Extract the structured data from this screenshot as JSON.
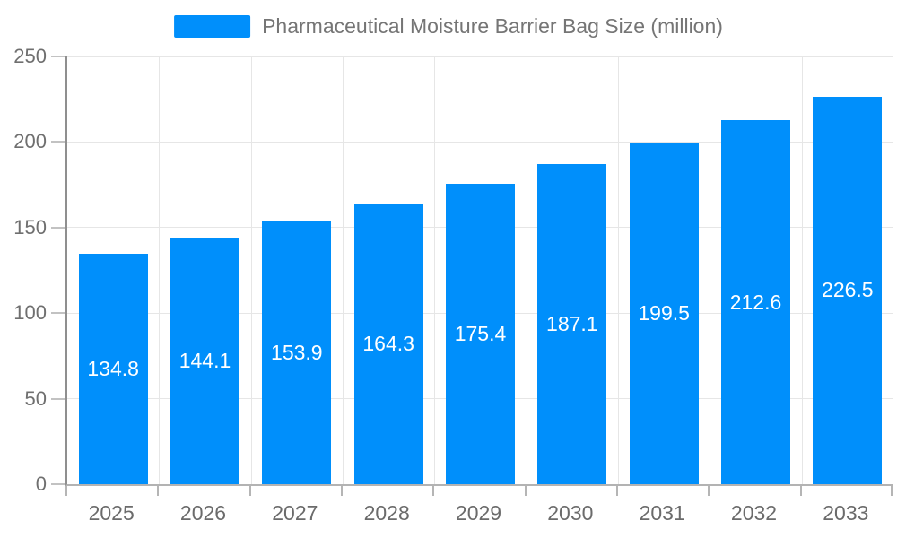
{
  "chart_data": {
    "type": "bar",
    "title": "Pharmaceutical Moisture Barrier Bag Size (million)",
    "categories": [
      "2025",
      "2026",
      "2027",
      "2028",
      "2029",
      "2030",
      "2031",
      "2032",
      "2033"
    ],
    "values": [
      134.8,
      144.1,
      153.9,
      164.3,
      175.4,
      187.1,
      199.5,
      212.6,
      226.5
    ],
    "xlabel": "",
    "ylabel": "",
    "ylim": [
      0,
      250
    ],
    "yticks": [
      0,
      50,
      100,
      150,
      200,
      250
    ],
    "grid": true,
    "legend_position": "top",
    "bar_color": "#008FFB",
    "value_label_color": "#ffffff",
    "value_label_position": "inside-center"
  },
  "legend": {
    "label": "Pharmaceutical Moisture Barrier Bag Size (million)",
    "swatch_color": "#008FFB"
  },
  "colors": {
    "background": "#ffffff",
    "grid": "#e6e6e6",
    "axis_y": "#8f8f8f",
    "axis_x": "#b3b3b3",
    "tick": "#b5b5b5",
    "axis_label": "#6b6b6b",
    "legend_text": "#757575"
  }
}
